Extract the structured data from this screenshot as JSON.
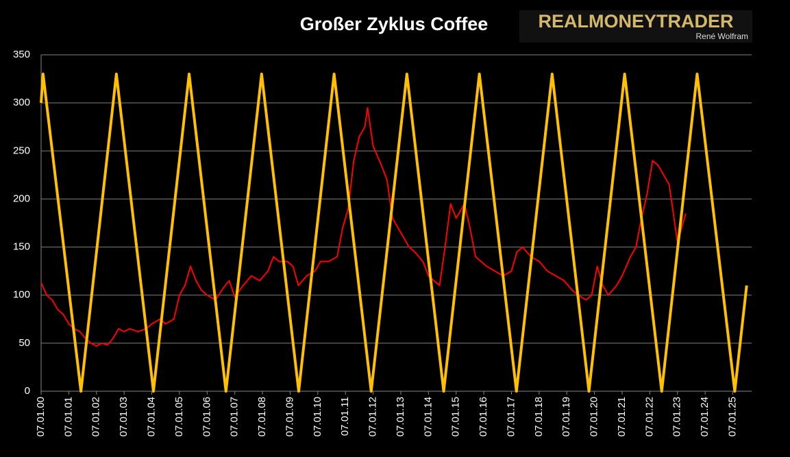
{
  "chart_data": {
    "type": "line",
    "title": "Großer Zyklus Coffee",
    "logo": {
      "brand": "REALMONEYTRADER",
      "author": "René Wolfram"
    },
    "ylim": [
      0,
      350
    ],
    "yticks": [
      0,
      50,
      100,
      150,
      200,
      250,
      300,
      350
    ],
    "grid": true,
    "xlim": [
      2000,
      2025.68
    ],
    "xticks": [
      {
        "value": 2000,
        "label": "07.01.00"
      },
      {
        "value": 2001,
        "label": "07.01.01"
      },
      {
        "value": 2002,
        "label": "07.01.02"
      },
      {
        "value": 2003,
        "label": "07.01.03"
      },
      {
        "value": 2004,
        "label": "07.01.04"
      },
      {
        "value": 2005,
        "label": "07.01.05"
      },
      {
        "value": 2006,
        "label": "07.01.06"
      },
      {
        "value": 2007,
        "label": "07.01.07"
      },
      {
        "value": 2008,
        "label": "07.01.08"
      },
      {
        "value": 2009,
        "label": "07.01.09"
      },
      {
        "value": 2010,
        "label": "07.01.10"
      },
      {
        "value": 2011,
        "label": "07.01.11"
      },
      {
        "value": 2012,
        "label": "07.01.12"
      },
      {
        "value": 2013,
        "label": "07.01.13"
      },
      {
        "value": 2014,
        "label": "07.01.14"
      },
      {
        "value": 2015,
        "label": "07.01.15"
      },
      {
        "value": 2016,
        "label": "07.01.16"
      },
      {
        "value": 2017,
        "label": "07.01.17"
      },
      {
        "value": 2018,
        "label": "07.01.18"
      },
      {
        "value": 2019,
        "label": "07.01.19"
      },
      {
        "value": 2020,
        "label": "07.01.20"
      },
      {
        "value": 2021,
        "label": "07.01.21"
      },
      {
        "value": 2022,
        "label": "07.01.22"
      },
      {
        "value": 2023,
        "label": "07.01.23"
      },
      {
        "value": 2024,
        "label": "07.01.24"
      },
      {
        "value": 2025,
        "label": "07.01.25"
      }
    ],
    "series": [
      {
        "color": "#ff0000",
        "width": 2,
        "x": [
          2000.0,
          2000.2,
          2000.4,
          2000.6,
          2000.8,
          2001.0,
          2001.2,
          2001.4,
          2001.6,
          2001.8,
          2002.0,
          2002.2,
          2002.4,
          2002.6,
          2002.8,
          2003.0,
          2003.2,
          2003.5,
          2003.8,
          2004.0,
          2004.3,
          2004.5,
          2004.8,
          2005.0,
          2005.2,
          2005.4,
          2005.6,
          2005.8,
          2006.0,
          2006.3,
          2006.6,
          2006.8,
          2007.0,
          2007.3,
          2007.6,
          2007.9,
          2008.2,
          2008.4,
          2008.6,
          2008.9,
          2009.1,
          2009.3,
          2009.6,
          2009.9,
          2010.1,
          2010.4,
          2010.7,
          2010.9,
          2011.1,
          2011.3,
          2011.5,
          2011.7,
          2011.8,
          2012.0,
          2012.3,
          2012.5,
          2012.7,
          2012.9,
          2013.1,
          2013.3,
          2013.5,
          2013.8,
          2014.0,
          2014.2,
          2014.4,
          2014.6,
          2014.8,
          2015.0,
          2015.3,
          2015.5,
          2015.7,
          2015.9,
          2016.1,
          2016.4,
          2016.7,
          2017.0,
          2017.2,
          2017.4,
          2017.7,
          2018.0,
          2018.3,
          2018.6,
          2018.9,
          2019.2,
          2019.4,
          2019.7,
          2019.9,
          2020.1,
          2020.3,
          2020.5,
          2020.8,
          2021.0,
          2021.3,
          2021.5,
          2021.7,
          2021.9,
          2022.1,
          2022.3,
          2022.5,
          2022.7,
          2022.8,
          2023.0,
          2023.2,
          2023.3
        ],
        "values": [
          113,
          100,
          95,
          85,
          80,
          70,
          65,
          62,
          55,
          50,
          47,
          50,
          48,
          55,
          65,
          62,
          65,
          62,
          65,
          70,
          75,
          70,
          75,
          100,
          110,
          130,
          115,
          105,
          100,
          95,
          108,
          115,
          98,
          110,
          120,
          115,
          125,
          140,
          135,
          135,
          130,
          110,
          120,
          125,
          135,
          135,
          140,
          170,
          190,
          240,
          265,
          275,
          295,
          255,
          235,
          220,
          180,
          170,
          160,
          150,
          145,
          135,
          120,
          115,
          110,
          150,
          195,
          180,
          195,
          170,
          140,
          135,
          130,
          125,
          120,
          125,
          145,
          150,
          140,
          135,
          125,
          120,
          115,
          105,
          100,
          95,
          100,
          130,
          110,
          100,
          110,
          120,
          140,
          150,
          180,
          205,
          240,
          235,
          225,
          215,
          195,
          155,
          175,
          185
        ]
      },
      {
        "color": "#ffc000",
        "width": 4,
        "x": [
          2000.0,
          2000.07,
          2001.44,
          2002.72,
          2004.06,
          2005.35,
          2006.68,
          2007.97,
          2009.31,
          2010.59,
          2011.93,
          2013.22,
          2014.55,
          2015.84,
          2017.18,
          2018.47,
          2019.8,
          2021.09,
          2022.43,
          2023.71,
          2025.07,
          2025.5
        ],
        "values": [
          300,
          330,
          0,
          330,
          0,
          330,
          0,
          330,
          0,
          330,
          0,
          330,
          0,
          330,
          0,
          330,
          0,
          330,
          0,
          330,
          0,
          110
        ]
      }
    ]
  }
}
